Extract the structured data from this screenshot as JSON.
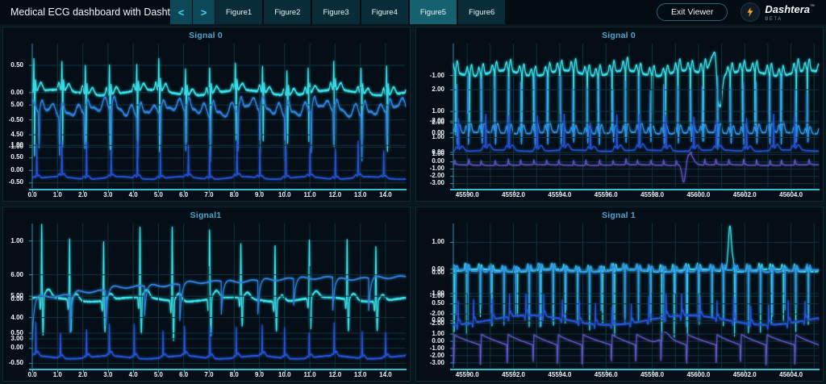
{
  "header": {
    "title": "Medical ECG dashboard with Dasht...",
    "nav": {
      "prev_icon": "<",
      "next_icon": ">"
    },
    "tabs": [
      {
        "label": "Figure1",
        "active": false
      },
      {
        "label": "Figure2",
        "active": false
      },
      {
        "label": "Figure3",
        "active": false
      },
      {
        "label": "Figure4",
        "active": false
      },
      {
        "label": "Figure5",
        "active": true
      },
      {
        "label": "Figure6",
        "active": false
      }
    ],
    "exit_label": "Exit Viewer",
    "logo": {
      "name": "Dashtera",
      "tm": "™",
      "badge": "BETA"
    }
  },
  "colors": {
    "accent_cyan": "#3fd9e8",
    "tab_bg": "#082d39",
    "tab_active": "#15616f",
    "chev_bg": "#0d4858",
    "panel_title": "#51a5cb",
    "axis_bright": "#2fc0d2",
    "spine": "#2c8ea6",
    "grid": "#10313d",
    "logo_accent": "#f6a81c"
  },
  "chart_data": {
    "type": "line",
    "panels": [
      {
        "title": "Signal 0",
        "xlim": [
          0,
          14.8
        ],
        "x_grid_step": 1.0,
        "x_tick_values": [
          0,
          1,
          2,
          3,
          4,
          5,
          6,
          7,
          8,
          9,
          10,
          11,
          12,
          13,
          14
        ],
        "x_tick_labels": [
          "0.0",
          "1.0",
          "2.0",
          "3.0",
          "4.0",
          "5.0",
          "6.0",
          "7.0",
          "8.0",
          "9.0",
          "10.0",
          "11.0",
          "12.0",
          "13.0",
          "14.0"
        ],
        "subplots": [
          {
            "color": "#38dfe8",
            "ylim": [
              -1.35,
              0.9
            ],
            "ytick_values": [
              0.5,
              0,
              -0.5,
              -1
            ],
            "ytick_labels": [
              "0.50",
              "0.00",
              "-0.50",
              "-1.00"
            ],
            "pattern": "ecg",
            "baseline": 0,
            "beats": 15,
            "noise": 0.035,
            "wob": 0.05,
            "wobf": 4,
            "features": [
              {
                "o": -0.15,
                "w": 0.035,
                "a": 0.13
              },
              {
                "o": -0.025,
                "w": 0.012,
                "a": 0.62
              },
              {
                "o": 0,
                "w": 0.012,
                "a": -1.15
              },
              {
                "o": 0.03,
                "w": 0.02,
                "a": 0.22
              },
              {
                "o": 0.25,
                "w": 0.07,
                "a": 0.13
              }
            ]
          },
          {
            "color": "#2e80da",
            "ylim": [
              4.0,
              5.3
            ],
            "ytick_values": [
              5,
              4.5
            ],
            "ytick_labels": [
              "5.00",
              "4.50"
            ],
            "pattern": "ecg",
            "baseline": 4.82,
            "beats": 15,
            "noise": 0.035,
            "wob": 0.06,
            "wobf": 5,
            "features": [
              {
                "o": -0.25,
                "w": 0.1,
                "a": 0.22
              },
              {
                "o": 0,
                "w": 0.014,
                "a": -0.68
              },
              {
                "o": 0.12,
                "w": 0.07,
                "a": 0.25
              },
              {
                "o": 0.35,
                "w": 0.12,
                "a": 0.1
              }
            ]
          },
          {
            "color": "#2553d8",
            "ylim": [
              -0.7,
              1.2
            ],
            "ytick_values": [
              1,
              0.5,
              0,
              -0.5
            ],
            "ytick_labels": [
              "1.00",
              "0.50",
              "0.00",
              "-0.50"
            ],
            "pattern": "ecg",
            "baseline": -0.3,
            "beats": 15,
            "noise": 0.03,
            "wob": 0.05,
            "wobf": 6,
            "features": [
              {
                "o": -0.1,
                "w": 0.04,
                "a": 0.1
              },
              {
                "o": 0,
                "w": 0.01,
                "a": 1.28
              },
              {
                "o": 0.08,
                "w": 0.05,
                "a": 0.12
              }
            ]
          }
        ]
      },
      {
        "title": "Signal 0",
        "xlim": [
          45589.4,
          45605.2
        ],
        "x_grid_step": 1.0,
        "x_tick_values": [
          45590,
          45592,
          45594,
          45596,
          45598,
          45600,
          45602,
          45604
        ],
        "x_tick_labels": [
          "45590.0",
          "45592.0",
          "45594.0",
          "45596.0",
          "45598.0",
          "45600.0",
          "45602.0",
          "45604.0"
        ],
        "subplots": [
          {
            "color": "#38dfe8",
            "ylim": [
              -2.9,
              -0.3
            ],
            "ytick_values": [
              -1,
              -2
            ],
            "ytick_labels": [
              "-1.00",
              "-2.00"
            ],
            "pattern": "ecg",
            "baseline": -0.95,
            "beats": 28,
            "noise": 0.04,
            "wob": 0.06,
            "wobf": 6,
            "features": [
              {
                "o": -0.18,
                "w": 0.07,
                "a": 0.18
              },
              {
                "o": 0,
                "w": 0.011,
                "a": -1.35
              },
              {
                "o": 0.15,
                "w": 0.07,
                "a": 0.25
              }
            ],
            "extras": [
              {
                "x": 0.715,
                "w": 0.012,
                "a": 0.5
              },
              {
                "x": 0.728,
                "w": 0.006,
                "a": -1.15
              }
            ]
          },
          {
            "color": "#2f93e6",
            "ylim": [
              -0.9,
              2.65
            ],
            "ytick_values": [
              2,
              1,
              0
            ],
            "ytick_labels": [
              "2.00",
              "1.00",
              "0.00"
            ],
            "pattern": "ecg",
            "baseline": 0,
            "beats": 28,
            "noise": 0.04,
            "wob": 0.04,
            "wobf": 5,
            "features": [
              {
                "o": -0.14,
                "w": 0.06,
                "a": 0.3
              },
              {
                "o": 0,
                "w": 0.011,
                "a": 2.45
              },
              {
                "o": 0.05,
                "w": 0.025,
                "a": -0.55
              },
              {
                "o": 0.22,
                "w": 0.09,
                "a": 0.4
              }
            ]
          },
          {
            "color": "#2553d8",
            "ylim": [
              -0.6,
              2.6
            ],
            "ytick_values": [
              2,
              1,
              0
            ],
            "ytick_labels": [
              "2.00",
              "1.00",
              "0.00"
            ],
            "pattern": "ecg",
            "baseline": 0.12,
            "beats": 14,
            "noise": 0.035,
            "wob": 0.04,
            "wobf": 5,
            "features": [
              {
                "o": -0.08,
                "w": 0.04,
                "a": 0.3
              },
              {
                "o": 0,
                "w": 0.01,
                "a": 2.15
              },
              {
                "o": 0.14,
                "w": 0.07,
                "a": 0.35
              }
            ]
          },
          {
            "color": "#5d55c2",
            "ylim": [
              -3.6,
              1.4
            ],
            "ytick_values": [
              1,
              0,
              -1,
              -2,
              -3
            ],
            "ytick_labels": [
              "1.00",
              "0.00",
              "-1.00",
              "-2.00",
              "-3.00"
            ],
            "pattern": "ecg",
            "baseline": -0.45,
            "beats": 28,
            "noise": 0.04,
            "wob": 0.05,
            "wobf": 4,
            "features": [
              {
                "o": 0,
                "w": 0.03,
                "a": 0.72
              },
              {
                "o": 0.14,
                "w": 0.06,
                "a": 0.12
              }
            ],
            "extras": [
              {
                "x": 0.631,
                "w": 0.005,
                "a": -2.95
              },
              {
                "x": 0.645,
                "w": 0.011,
                "a": 1.55
              }
            ]
          }
        ]
      },
      {
        "title": "Signal1",
        "xlim": [
          0,
          14.8
        ],
        "x_grid_step": 1.0,
        "x_tick_values": [
          0,
          1,
          2,
          3,
          4,
          5,
          6,
          7,
          8,
          9,
          10,
          11,
          12,
          13,
          14
        ],
        "x_tick_labels": [
          "0.0",
          "1.0",
          "2.0",
          "3.0",
          "4.0",
          "5.0",
          "6.0",
          "7.0",
          "8.0",
          "9.0",
          "10.0",
          "11.0",
          "12.0",
          "13.0",
          "14.0"
        ],
        "subplots": [
          {
            "color": "#38dfe8",
            "ylim": [
              -0.8,
              1.3
            ],
            "ytick_values": [
              1,
              0
            ],
            "ytick_labels": [
              "1.00",
              "0.00"
            ],
            "pattern": "ecg",
            "baseline": 0,
            "beats": 11,
            "noise": 0.03,
            "wob": 0.04,
            "wobf": 4,
            "features": [
              {
                "o": -0.04,
                "w": 0.015,
                "a": -0.18
              },
              {
                "o": 0,
                "w": 0.009,
                "a": 1.12
              },
              {
                "o": 0.04,
                "w": 0.014,
                "a": -0.6
              },
              {
                "o": 0.2,
                "w": 0.08,
                "a": 0.12
              }
            ]
          },
          {
            "color": "#2e80da",
            "ylim": [
              2.7,
              6.4
            ],
            "ytick_values": [
              6,
              5,
              4,
              3
            ],
            "ytick_labels": [
              "6.00",
              "5.00",
              "4.00",
              "3.00"
            ],
            "pattern": "plateau",
            "cycles": 10,
            "hi0": 4.95,
            "hiMax": 5.85,
            "depth": 1.5,
            "firstLo": 2.95,
            "noise": 0.04
          },
          {
            "color": "#2553d8",
            "ylim": [
              -0.65,
              0.9
            ],
            "ytick_values": [
              0.5,
              0,
              -0.5
            ],
            "ytick_labels": [
              "0.50",
              "0.00",
              "-0.50"
            ],
            "pattern": "ecg",
            "baseline": -0.3,
            "beats": 15,
            "noise": 0.035,
            "wob": 0.05,
            "wobf": 5,
            "features": [
              {
                "o": -0.07,
                "w": 0.03,
                "a": 0.06
              },
              {
                "o": 0,
                "w": 0.009,
                "a": 0.95
              },
              {
                "o": 0.08,
                "w": 0.05,
                "a": 0.13
              }
            ]
          }
        ]
      },
      {
        "title": "Signal 1",
        "xlim": [
          45589.4,
          45605.2
        ],
        "x_grid_step": 1.0,
        "x_tick_values": [
          45590,
          45592,
          45594,
          45596,
          45598,
          45600,
          45602,
          45604
        ],
        "x_tick_labels": [
          "45590.0",
          "45592.0",
          "45594.0",
          "45596.0",
          "45598.0",
          "45600.0",
          "45602.0",
          "45604.0"
        ],
        "subplots": [
          {
            "color": "#38dfe8",
            "ylim": [
              -2.7,
              1.7
            ],
            "ytick_values": [
              1,
              0,
              -1,
              -2
            ],
            "ytick_labels": [
              "1.00",
              "0.00",
              "-1.00",
              "-2.00"
            ],
            "pattern": "ecg",
            "baseline": -0.05,
            "beats": 30,
            "noise": 0.045,
            "wob": 0.05,
            "wobf": 5,
            "features": [
              {
                "o": -0.12,
                "w": 0.05,
                "a": 0.22
              },
              {
                "o": 0,
                "w": 0.009,
                "a": -2.25
              },
              {
                "o": 0.1,
                "w": 0.05,
                "a": 0.18
              }
            ],
            "extras": [
              {
                "x": 0.757,
                "w": 0.0045,
                "a": 1.7
              }
            ]
          },
          {
            "color": "#2f93e6",
            "ylim": [
              -2.9,
              0.85
            ],
            "ytick_values": [
              0,
              -1,
              -2
            ],
            "ytick_labels": [
              "0.00",
              "-1.00",
              "-2.00"
            ],
            "pattern": "ecg",
            "baseline": 0.1,
            "beats": 30,
            "noise": 0.045,
            "wob": 0.05,
            "wobf": 4,
            "features": [
              {
                "o": -0.13,
                "w": 0.06,
                "a": 0.3
              },
              {
                "o": 0,
                "w": 0.009,
                "a": -2.55
              },
              {
                "o": 0.12,
                "w": 0.06,
                "a": 0.25
              }
            ]
          },
          {
            "color": "#2553d8",
            "ylim": [
              -0.6,
              0.8
            ],
            "ytick_values": [
              0.5,
              0
            ],
            "ytick_labels": [
              "0.50",
              "0.00"
            ],
            "pattern": "ecg",
            "baseline": 0.02,
            "beats": 21,
            "noise": 0.035,
            "wob": 0.14,
            "wobf": 2.3,
            "features": [
              {
                "o": -0.05,
                "w": 0.025,
                "a": -0.12
              },
              {
                "o": 0,
                "w": 0.01,
                "a": 0.6
              },
              {
                "o": 0.07,
                "w": 0.045,
                "a": 0.14
              }
            ]
          },
          {
            "color": "#5d55c2",
            "ylim": [
              -3.7,
              1.35
            ],
            "ytick_values": [
              1,
              0,
              -1,
              -2,
              -3
            ],
            "ytick_labels": [
              "1.00",
              "0.00",
              "-1.00",
              "-2.00",
              "-3.00"
            ],
            "pattern": "saw",
            "cycles": 14,
            "peak": 0.95,
            "endv": -0.5,
            "vmin": -3.35,
            "noise": 0.04,
            "extras": [
              {
                "x": 0.565,
                "w": 0.009,
                "a": 0.55
              },
              {
                "x": 0.584,
                "w": 0.009,
                "a": 0.5
              }
            ]
          }
        ]
      }
    ]
  }
}
